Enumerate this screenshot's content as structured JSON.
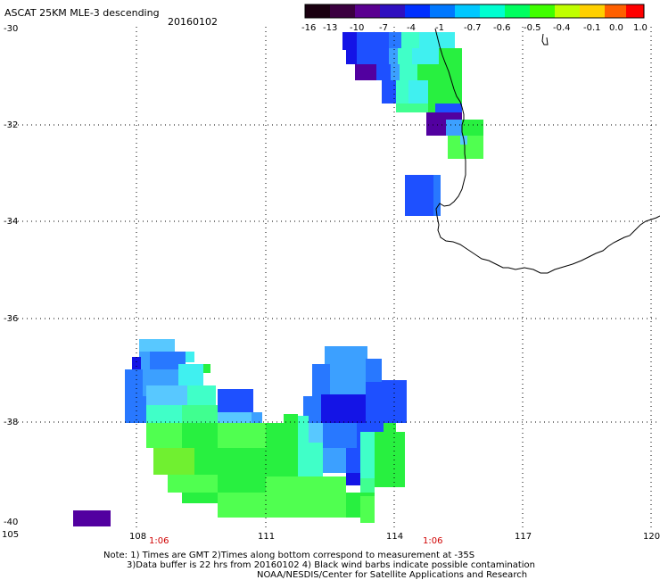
{
  "header": {
    "title": "ASCAT 25KM MLE-3 descending",
    "date": "20160102"
  },
  "colorbar": {
    "labels": [
      "-16",
      "-13",
      "-10",
      "-7",
      "-4",
      "-1",
      "-0.7",
      "-0.6",
      "-0.5",
      "-0.4",
      "-0.1",
      "0.0",
      "1.0"
    ],
    "colors": [
      "#1a0010",
      "#3b0040",
      "#5a0090",
      "#3010c0",
      "#0030ff",
      "#0078ff",
      "#00c8ff",
      "#00ffd0",
      "#00ff60",
      "#40ff00",
      "#c0ff00",
      "#ffd000",
      "#ff6000",
      "#ff0000"
    ]
  },
  "axes": {
    "y_labels": [
      "-30",
      "-32",
      "-34",
      "-36",
      "-38",
      "-40"
    ],
    "x_labels": [
      "105",
      "108",
      "111",
      "114",
      "117",
      "120"
    ],
    "time_labels": [
      "1:06",
      "1:06"
    ]
  },
  "notes": {
    "line1": "Note: 1) Times are GMT 2)Times along bottom correspond to measurement at -35S",
    "line2": "3)Data buffer is 22 hrs from 20160102 4) Black wind barbs indicate possible contamination",
    "line3": "NOAA/NESDIS/Center for Satellite Applications and Research"
  }
}
